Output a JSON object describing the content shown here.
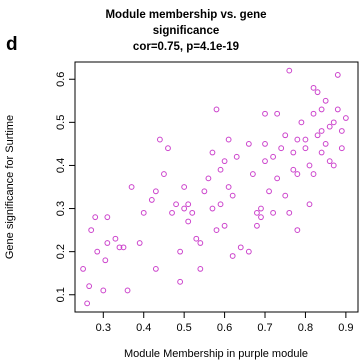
{
  "panel_label": "d",
  "chart_data": {
    "type": "scatter",
    "title_lines": [
      "Module membership vs. gene",
      "significance",
      "cor=0.75, p=4.1e-19"
    ],
    "xlabel": "Module Membership in purple module",
    "ylabel": "Gene significance for Surtime",
    "xlim": [
      0.23,
      0.93
    ],
    "ylim": [
      0.06,
      0.64
    ],
    "xticks": [
      "0.3",
      "0.4",
      "0.5",
      "0.6",
      "0.7",
      "0.8",
      "0.9"
    ],
    "yticks": [
      "0.1",
      "0.2",
      "0.3",
      "0.4",
      "0.5",
      "0.6"
    ],
    "grid": false,
    "marker_color": "#cc44cc",
    "points": [
      [
        0.25,
        0.16
      ],
      [
        0.26,
        0.08
      ],
      [
        0.265,
        0.12
      ],
      [
        0.27,
        0.25
      ],
      [
        0.28,
        0.28
      ],
      [
        0.285,
        0.2
      ],
      [
        0.3,
        0.11
      ],
      [
        0.305,
        0.18
      ],
      [
        0.31,
        0.22
      ],
      [
        0.31,
        0.28
      ],
      [
        0.33,
        0.23
      ],
      [
        0.34,
        0.21
      ],
      [
        0.35,
        0.21
      ],
      [
        0.36,
        0.11
      ],
      [
        0.37,
        0.35
      ],
      [
        0.39,
        0.22
      ],
      [
        0.4,
        0.29
      ],
      [
        0.42,
        0.32
      ],
      [
        0.43,
        0.34
      ],
      [
        0.43,
        0.16
      ],
      [
        0.44,
        0.46
      ],
      [
        0.45,
        0.38
      ],
      [
        0.46,
        0.44
      ],
      [
        0.47,
        0.29
      ],
      [
        0.48,
        0.31
      ],
      [
        0.49,
        0.2
      ],
      [
        0.49,
        0.13
      ],
      [
        0.5,
        0.35
      ],
      [
        0.5,
        0.3
      ],
      [
        0.51,
        0.31
      ],
      [
        0.51,
        0.27
      ],
      [
        0.52,
        0.29
      ],
      [
        0.53,
        0.23
      ],
      [
        0.54,
        0.16
      ],
      [
        0.54,
        0.22
      ],
      [
        0.55,
        0.34
      ],
      [
        0.56,
        0.37
      ],
      [
        0.57,
        0.43
      ],
      [
        0.57,
        0.3
      ],
      [
        0.58,
        0.25
      ],
      [
        0.58,
        0.53
      ],
      [
        0.59,
        0.39
      ],
      [
        0.59,
        0.31
      ],
      [
        0.6,
        0.41
      ],
      [
        0.6,
        0.26
      ],
      [
        0.61,
        0.35
      ],
      [
        0.61,
        0.46
      ],
      [
        0.62,
        0.19
      ],
      [
        0.62,
        0.33
      ],
      [
        0.63,
        0.42
      ],
      [
        0.64,
        0.21
      ],
      [
        0.66,
        0.2
      ],
      [
        0.66,
        0.45
      ],
      [
        0.67,
        0.38
      ],
      [
        0.68,
        0.26
      ],
      [
        0.68,
        0.29
      ],
      [
        0.69,
        0.28
      ],
      [
        0.69,
        0.3
      ],
      [
        0.7,
        0.41
      ],
      [
        0.7,
        0.52
      ],
      [
        0.7,
        0.45
      ],
      [
        0.71,
        0.34
      ],
      [
        0.72,
        0.42
      ],
      [
        0.72,
        0.29
      ],
      [
        0.73,
        0.52
      ],
      [
        0.73,
        0.37
      ],
      [
        0.74,
        0.44
      ],
      [
        0.75,
        0.33
      ],
      [
        0.75,
        0.47
      ],
      [
        0.76,
        0.29
      ],
      [
        0.76,
        0.62
      ],
      [
        0.77,
        0.39
      ],
      [
        0.77,
        0.43
      ],
      [
        0.78,
        0.38
      ],
      [
        0.78,
        0.46
      ],
      [
        0.78,
        0.25
      ],
      [
        0.79,
        0.5
      ],
      [
        0.8,
        0.46
      ],
      [
        0.8,
        0.44
      ],
      [
        0.81,
        0.31
      ],
      [
        0.81,
        0.4
      ],
      [
        0.82,
        0.58
      ],
      [
        0.82,
        0.38
      ],
      [
        0.82,
        0.52
      ],
      [
        0.83,
        0.47
      ],
      [
        0.83,
        0.57
      ],
      [
        0.84,
        0.43
      ],
      [
        0.84,
        0.48
      ],
      [
        0.84,
        0.53
      ],
      [
        0.85,
        0.55
      ],
      [
        0.85,
        0.45
      ],
      [
        0.86,
        0.49
      ],
      [
        0.86,
        0.41
      ],
      [
        0.87,
        0.4
      ],
      [
        0.87,
        0.5
      ],
      [
        0.88,
        0.61
      ],
      [
        0.88,
        0.53
      ],
      [
        0.89,
        0.48
      ],
      [
        0.89,
        0.44
      ],
      [
        0.9,
        0.51
      ]
    ]
  }
}
